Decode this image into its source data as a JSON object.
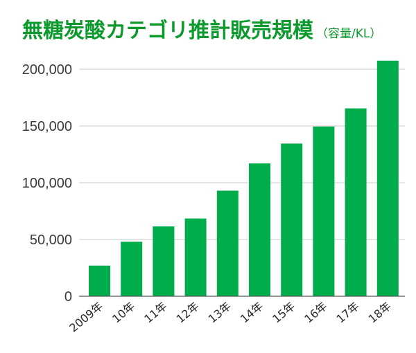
{
  "chart_data": {
    "type": "bar",
    "title": "無糖炭酸カテゴリ推計販売規模",
    "subtitle": "（容量/KL）",
    "xlabel": "",
    "ylabel": "",
    "categories": [
      "2009年",
      "10年",
      "11年",
      "12年",
      "13年",
      "14年",
      "15年",
      "16年",
      "17年",
      "18年"
    ],
    "values": [
      27000,
      48000,
      61500,
      68500,
      93000,
      117000,
      134500,
      149500,
      165500,
      207500
    ],
    "ylim": [
      0,
      200000
    ],
    "yticks": [
      0,
      50000,
      100000,
      150000,
      200000
    ],
    "ytick_labels": [
      "0",
      "50,000",
      "100,000",
      "150,000",
      "200,000"
    ],
    "grid": true,
    "legend": "none",
    "colors": {
      "bar": "#00ad4a",
      "title": "#0c9a2c",
      "subtitle": "#0c9a2c",
      "grid": "#c8c8c8",
      "axis": "#555555"
    }
  }
}
